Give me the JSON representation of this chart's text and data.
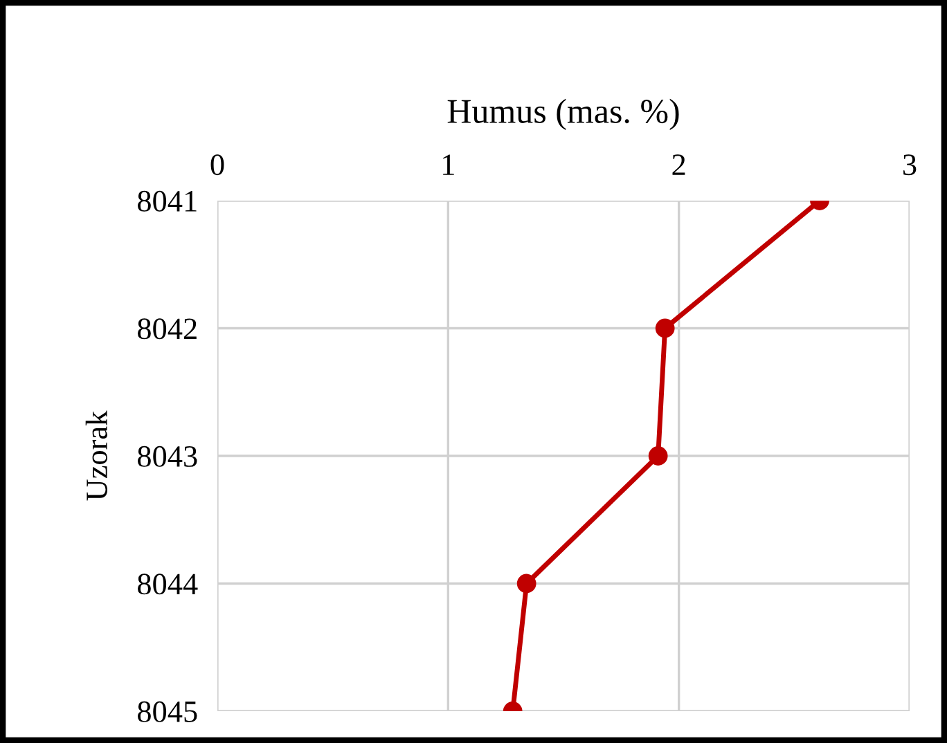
{
  "chart_data": {
    "type": "line",
    "orientation": "horizontal",
    "xlabel": "Humus (mas. %)",
    "ylabel": "Uzorak",
    "categories": [
      "8041",
      "8042",
      "8043",
      "8044",
      "8045"
    ],
    "series": [
      {
        "color": "#c00000",
        "values": [
          2.61,
          1.94,
          1.91,
          1.34,
          1.28
        ]
      }
    ],
    "xlim": [
      0,
      3
    ],
    "xticks": [
      0,
      1,
      2,
      3
    ],
    "grid": true,
    "marker": "circle",
    "line_style": "solid"
  }
}
